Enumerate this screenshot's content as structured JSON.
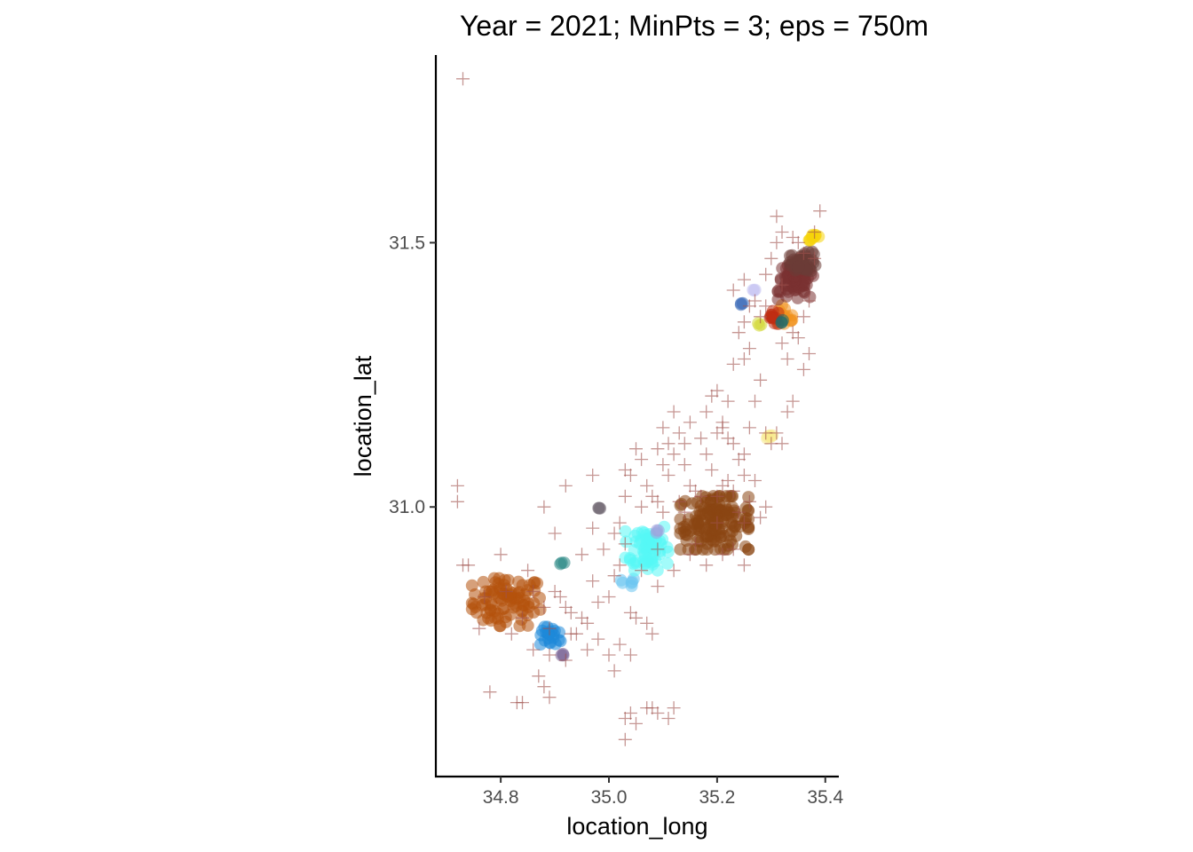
{
  "chart_data": {
    "type": "scatter",
    "title": "Year = 2021; MinPts = 3; eps = 750m",
    "xlabel": "location_long",
    "ylabel": "location_lat",
    "xlim": [
      34.68,
      35.425
    ],
    "ylim": [
      30.49,
      31.855
    ],
    "xticks": [
      34.8,
      35.0,
      35.2,
      35.4
    ],
    "xtick_labels": [
      "34.8",
      "35.0",
      "35.2",
      "35.4"
    ],
    "yticks": [
      31.0,
      31.5
    ],
    "ytick_labels": [
      "31.0",
      "31.5"
    ],
    "grid": false,
    "legend": "none",
    "noise": {
      "marker": "plus",
      "color": "#a0524d",
      "points": [
        [
          34.73,
          31.81
        ],
        [
          34.72,
          31.04
        ],
        [
          34.72,
          31.01
        ],
        [
          34.73,
          30.89
        ],
        [
          34.74,
          30.89
        ],
        [
          34.76,
          30.77
        ],
        [
          34.78,
          30.65
        ],
        [
          34.8,
          30.91
        ],
        [
          34.83,
          30.63
        ],
        [
          34.84,
          30.63
        ],
        [
          34.85,
          30.88
        ],
        [
          34.86,
          30.84
        ],
        [
          34.87,
          30.68
        ],
        [
          34.88,
          30.66
        ],
        [
          34.89,
          30.64
        ],
        [
          34.88,
          30.81
        ],
        [
          34.89,
          30.77
        ],
        [
          34.9,
          30.84
        ],
        [
          34.91,
          30.83
        ],
        [
          34.92,
          30.81
        ],
        [
          34.93,
          30.8
        ],
        [
          34.94,
          30.76
        ],
        [
          34.95,
          30.79
        ],
        [
          34.96,
          30.78
        ],
        [
          34.97,
          30.86
        ],
        [
          34.95,
          30.91
        ],
        [
          34.9,
          30.95
        ],
        [
          34.88,
          31.0
        ],
        [
          34.92,
          31.04
        ],
        [
          34.97,
          31.06
        ],
        [
          34.97,
          30.96
        ],
        [
          34.99,
          30.92
        ],
        [
          34.98,
          30.82
        ],
        [
          35.0,
          30.83
        ],
        [
          35.01,
          30.87
        ],
        [
          35.02,
          30.89
        ],
        [
          35.02,
          30.97
        ],
        [
          35.03,
          31.02
        ],
        [
          35.04,
          30.8
        ],
        [
          35.05,
          30.79
        ],
        [
          35.01,
          30.69
        ],
        [
          35.03,
          30.6
        ],
        [
          35.04,
          30.61
        ],
        [
          35.05,
          30.59
        ],
        [
          35.07,
          30.62
        ],
        [
          35.08,
          30.62
        ],
        [
          35.09,
          30.61
        ],
        [
          35.11,
          30.6
        ],
        [
          35.12,
          30.62
        ],
        [
          35.03,
          30.56
        ],
        [
          35.07,
          30.78
        ],
        [
          35.08,
          30.76
        ],
        [
          35.06,
          31.0
        ],
        [
          35.07,
          31.04
        ],
        [
          35.08,
          31.02
        ],
        [
          35.09,
          31.01
        ],
        [
          35.1,
          31.08
        ],
        [
          35.11,
          31.06
        ],
        [
          35.12,
          31.1
        ],
        [
          35.13,
          31.01
        ],
        [
          35.14,
          30.99
        ],
        [
          35.14,
          31.08
        ],
        [
          35.15,
          31.04
        ],
        [
          35.16,
          31.03
        ],
        [
          35.17,
          31.02
        ],
        [
          35.19,
          31.07
        ],
        [
          35.2,
          31.02
        ],
        [
          35.21,
          31.04
        ],
        [
          35.22,
          31.05
        ],
        [
          35.23,
          31.03
        ],
        [
          35.24,
          30.99
        ],
        [
          35.25,
          30.97
        ],
        [
          35.26,
          31.01
        ],
        [
          35.27,
          31.05
        ],
        [
          35.28,
          30.98
        ],
        [
          35.29,
          31.0
        ],
        [
          35.25,
          31.06
        ],
        [
          35.24,
          31.09
        ],
        [
          35.23,
          31.12
        ],
        [
          35.22,
          31.13
        ],
        [
          35.2,
          31.14
        ],
        [
          35.21,
          31.15
        ],
        [
          35.22,
          31.2
        ],
        [
          35.21,
          31.16
        ],
        [
          35.18,
          31.18
        ],
        [
          35.19,
          31.21
        ],
        [
          35.2,
          31.22
        ],
        [
          35.23,
          31.27
        ],
        [
          35.25,
          31.28
        ],
        [
          35.26,
          31.3
        ],
        [
          35.24,
          31.33
        ],
        [
          35.25,
          31.35
        ],
        [
          35.23,
          31.41
        ],
        [
          35.25,
          31.43
        ],
        [
          35.26,
          31.38
        ],
        [
          35.27,
          31.39
        ],
        [
          35.28,
          31.36
        ],
        [
          35.29,
          31.38
        ],
        [
          35.29,
          31.44
        ],
        [
          35.3,
          31.47
        ],
        [
          35.31,
          31.5
        ],
        [
          35.31,
          31.55
        ],
        [
          35.32,
          31.42
        ],
        [
          35.32,
          31.31
        ],
        [
          35.33,
          31.28
        ],
        [
          35.34,
          31.33
        ],
        [
          35.35,
          31.32
        ],
        [
          35.36,
          31.36
        ],
        [
          35.37,
          31.39
        ],
        [
          35.38,
          31.47
        ],
        [
          35.38,
          31.52
        ],
        [
          35.39,
          31.56
        ],
        [
          35.36,
          31.48
        ],
        [
          35.35,
          31.5
        ],
        [
          35.34,
          31.51
        ],
        [
          35.32,
          31.52
        ],
        [
          35.37,
          31.29
        ],
        [
          35.36,
          31.26
        ],
        [
          35.28,
          31.24
        ],
        [
          35.27,
          31.2
        ],
        [
          35.26,
          31.15
        ],
        [
          35.31,
          31.14
        ],
        [
          35.32,
          31.12
        ],
        [
          35.33,
          31.18
        ],
        [
          35.34,
          31.2
        ],
        [
          35.29,
          31.14
        ],
        [
          35.3,
          31.12
        ],
        [
          35.25,
          31.1
        ],
        [
          35.17,
          31.13
        ],
        [
          35.18,
          31.1
        ],
        [
          35.14,
          31.12
        ],
        [
          35.13,
          31.14
        ],
        [
          35.11,
          31.12
        ],
        [
          35.1,
          31.15
        ],
        [
          35.09,
          31.11
        ],
        [
          35.06,
          31.09
        ],
        [
          35.05,
          31.11
        ],
        [
          35.04,
          31.06
        ],
        [
          35.03,
          31.07
        ],
        [
          35.15,
          31.16
        ],
        [
          35.12,
          31.18
        ],
        [
          34.77,
          30.83
        ],
        [
          34.84,
          30.79
        ],
        [
          34.82,
          30.76
        ],
        [
          34.86,
          30.73
        ],
        [
          34.89,
          30.72
        ],
        [
          34.92,
          30.71
        ],
        [
          34.93,
          30.76
        ],
        [
          34.96,
          30.73
        ],
        [
          34.98,
          30.75
        ],
        [
          35.0,
          30.72
        ],
        [
          35.02,
          30.74
        ],
        [
          35.04,
          30.72
        ],
        [
          34.81,
          30.84
        ],
        [
          35.09,
          30.92
        ],
        [
          35.12,
          30.88
        ],
        [
          35.15,
          30.91
        ],
        [
          35.16,
          30.93
        ],
        [
          35.18,
          30.89
        ],
        [
          35.21,
          30.91
        ],
        [
          35.23,
          30.92
        ],
        [
          35.25,
          30.89
        ],
        [
          35.01,
          30.95
        ],
        [
          35.03,
          30.93
        ],
        [
          35.06,
          30.88
        ],
        [
          35.09,
          30.85
        ],
        [
          35.1,
          30.99
        ],
        [
          35.2,
          30.97
        ]
      ]
    },
    "clusters": [
      {
        "color": "#b5520c",
        "center": [
          34.81,
          30.82
        ],
        "spread": [
          0.035,
          0.025
        ],
        "count": 90
      },
      {
        "color": "#1e88d8",
        "center": [
          34.895,
          30.755
        ],
        "spread": [
          0.012,
          0.01
        ],
        "count": 22
      },
      {
        "color": "#7b6697",
        "center": [
          34.912,
          30.72
        ],
        "spread": [
          0.002,
          0.002
        ],
        "count": 3
      },
      {
        "color": "#2d8a87",
        "center": [
          34.915,
          30.895
        ],
        "spread": [
          0.003,
          0.002
        ],
        "count": 3
      },
      {
        "color": "#6d6470",
        "center": [
          34.98,
          30.998
        ],
        "spread": [
          0.003,
          0.002
        ],
        "count": 3
      },
      {
        "color": "#6ac4f0",
        "center": [
          35.035,
          30.855
        ],
        "spread": [
          0.007,
          0.006
        ],
        "count": 6
      },
      {
        "color": "#55f7f5",
        "center": [
          35.07,
          30.925
        ],
        "spread": [
          0.022,
          0.025
        ],
        "count": 60
      },
      {
        "color": "#9fa2dc",
        "center": [
          35.09,
          30.955
        ],
        "spread": [
          0.002,
          0.002
        ],
        "count": 3
      },
      {
        "color": "#8b4513",
        "center": [
          35.195,
          30.97
        ],
        "spread": [
          0.035,
          0.028
        ],
        "count": 150
      },
      {
        "color": "#f8ea8c",
        "center": [
          35.295,
          31.135
        ],
        "spread": [
          0.006,
          0.005
        ],
        "count": 5
      },
      {
        "color": "#d4d938",
        "center": [
          35.28,
          31.345
        ],
        "spread": [
          0.003,
          0.003
        ],
        "count": 3
      },
      {
        "color": "#3a6ab8",
        "center": [
          35.245,
          31.385
        ],
        "spread": [
          0.002,
          0.002
        ],
        "count": 3
      },
      {
        "color": "#c7c5f2",
        "center": [
          35.268,
          31.41
        ],
        "spread": [
          0.003,
          0.002
        ],
        "count": 3
      },
      {
        "color": "#f0921e",
        "center": [
          35.325,
          31.36
        ],
        "spread": [
          0.012,
          0.012
        ],
        "count": 18
      },
      {
        "color": "#c02d12",
        "center": [
          35.305,
          31.358
        ],
        "spread": [
          0.008,
          0.007
        ],
        "count": 12
      },
      {
        "color": "#1f6b6b",
        "center": [
          35.315,
          31.35
        ],
        "spread": [
          0.004,
          0.002
        ],
        "count": 3
      },
      {
        "color": "#7a3232",
        "center": [
          35.345,
          31.425
        ],
        "spread": [
          0.018,
          0.018
        ],
        "count": 70
      },
      {
        "color": "#6b3c36",
        "center": [
          35.36,
          31.465
        ],
        "spread": [
          0.014,
          0.01
        ],
        "count": 40
      },
      {
        "color": "#f5d30a",
        "center": [
          35.38,
          31.51
        ],
        "spread": [
          0.006,
          0.003
        ],
        "count": 10
      }
    ]
  }
}
